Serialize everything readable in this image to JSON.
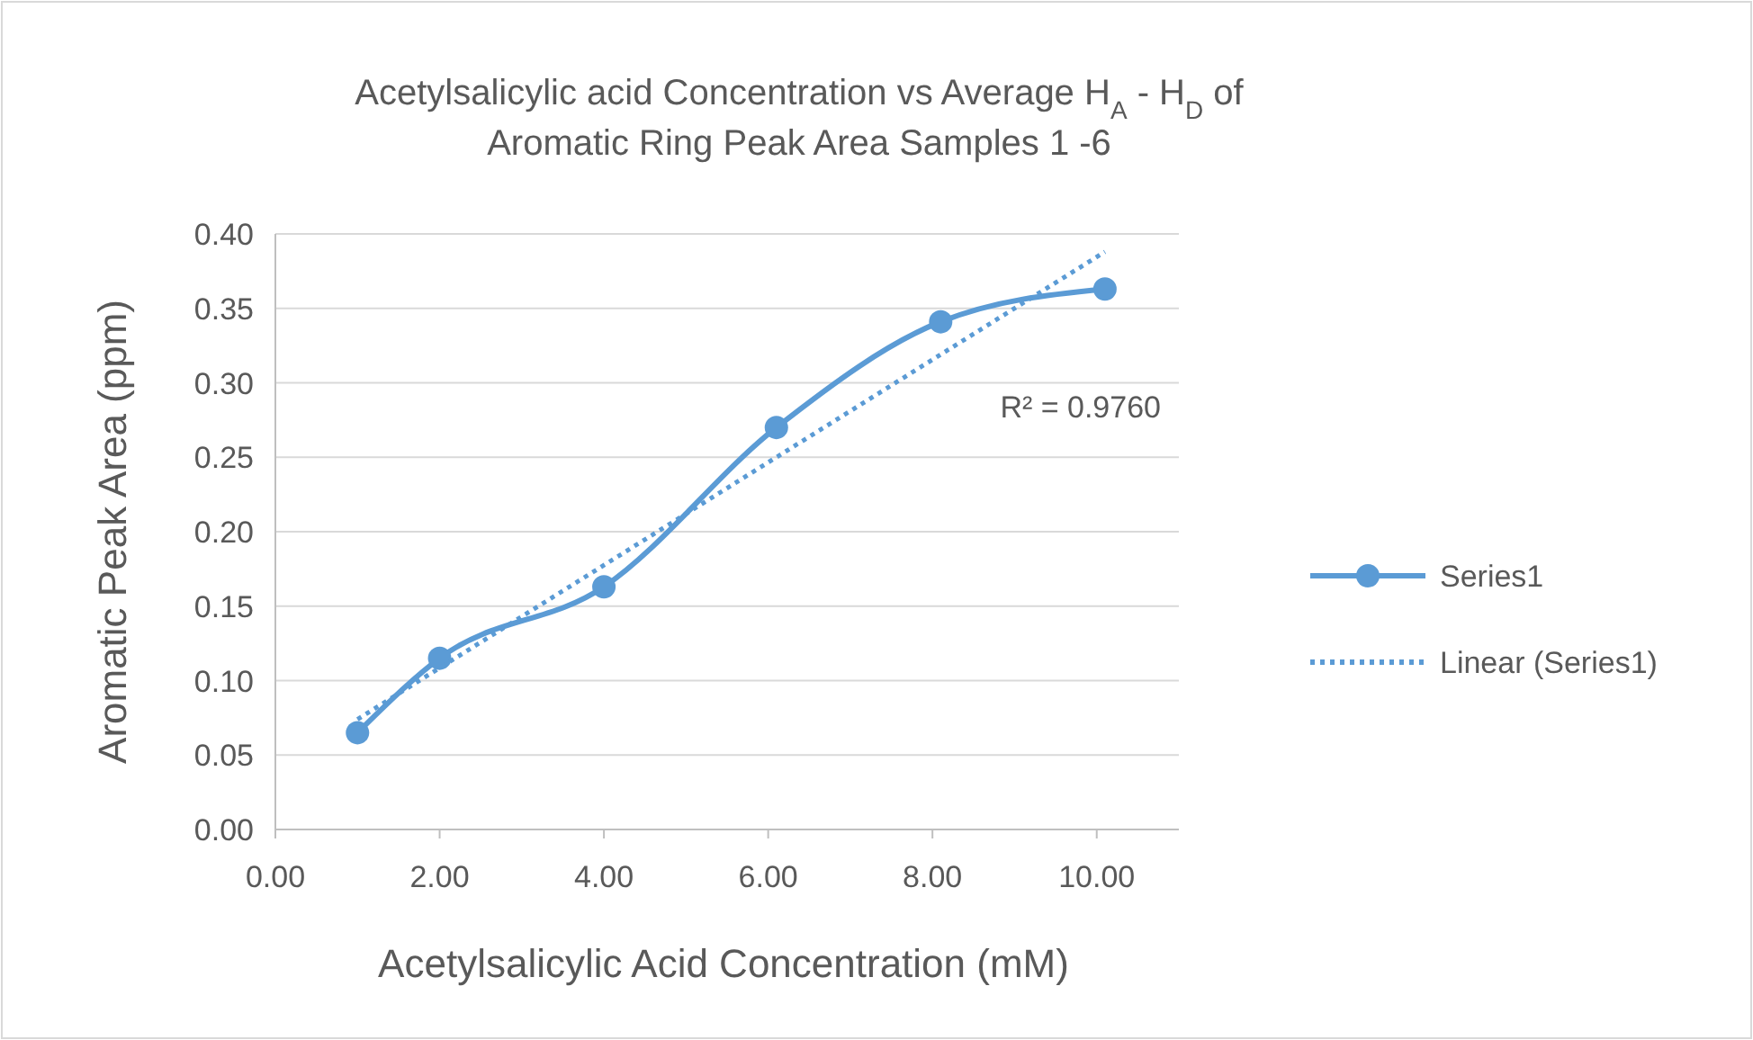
{
  "chart_data": {
    "type": "line",
    "title": "Acetylsalicylic acid Concentration vs  Average  H$_{A}$ - H$_{D}$ of Aromatic Ring Peak Area Samples 1 -6",
    "xlabel": "Acetylsalicylic  Acid Concentration (mM)",
    "ylabel": "Aromatic Peak Area (ppm)",
    "x": [
      1,
      2,
      4,
      6.1,
      8.1,
      10.1
    ],
    "series": [
      {
        "name": "Series1",
        "color": "#5b9bd5",
        "values": [
          0.065,
          0.115,
          0.163,
          0.27,
          0.341,
          0.363
        ],
        "marker": "circle",
        "line_style": "solid"
      },
      {
        "name": "Linear (Series1)",
        "color": "#5b9bd5",
        "x": [
          1,
          10.1
        ],
        "values": [
          0.074,
          0.388
        ],
        "marker": "none",
        "line_style": "dotted"
      }
    ],
    "annotations": [
      "R² = 0.9760"
    ],
    "xlim": [
      0,
      11
    ],
    "xticks": [
      {
        "value": 0,
        "label": "0.00"
      },
      {
        "value": 2,
        "label": "2.00"
      },
      {
        "value": 4,
        "label": "4.00"
      },
      {
        "value": 6,
        "label": "6.00"
      },
      {
        "value": 8,
        "label": "8.00"
      },
      {
        "value": 10,
        "label": "10.00"
      }
    ],
    "ylim": [
      0,
      0.4
    ],
    "yticks": [
      {
        "value": 0,
        "label": "0.00"
      },
      {
        "value": 0.05,
        "label": "0.05"
      },
      {
        "value": 0.1,
        "label": "0.10"
      },
      {
        "value": 0.15,
        "label": "0.15"
      },
      {
        "value": 0.2,
        "label": "0.20"
      },
      {
        "value": 0.25,
        "label": "0.25"
      },
      {
        "value": 0.3,
        "label": "0.30"
      },
      {
        "value": 0.35,
        "label": "0.35"
      },
      {
        "value": 0.4,
        "label": "0.40"
      }
    ],
    "grid": "y",
    "legend": "right"
  }
}
